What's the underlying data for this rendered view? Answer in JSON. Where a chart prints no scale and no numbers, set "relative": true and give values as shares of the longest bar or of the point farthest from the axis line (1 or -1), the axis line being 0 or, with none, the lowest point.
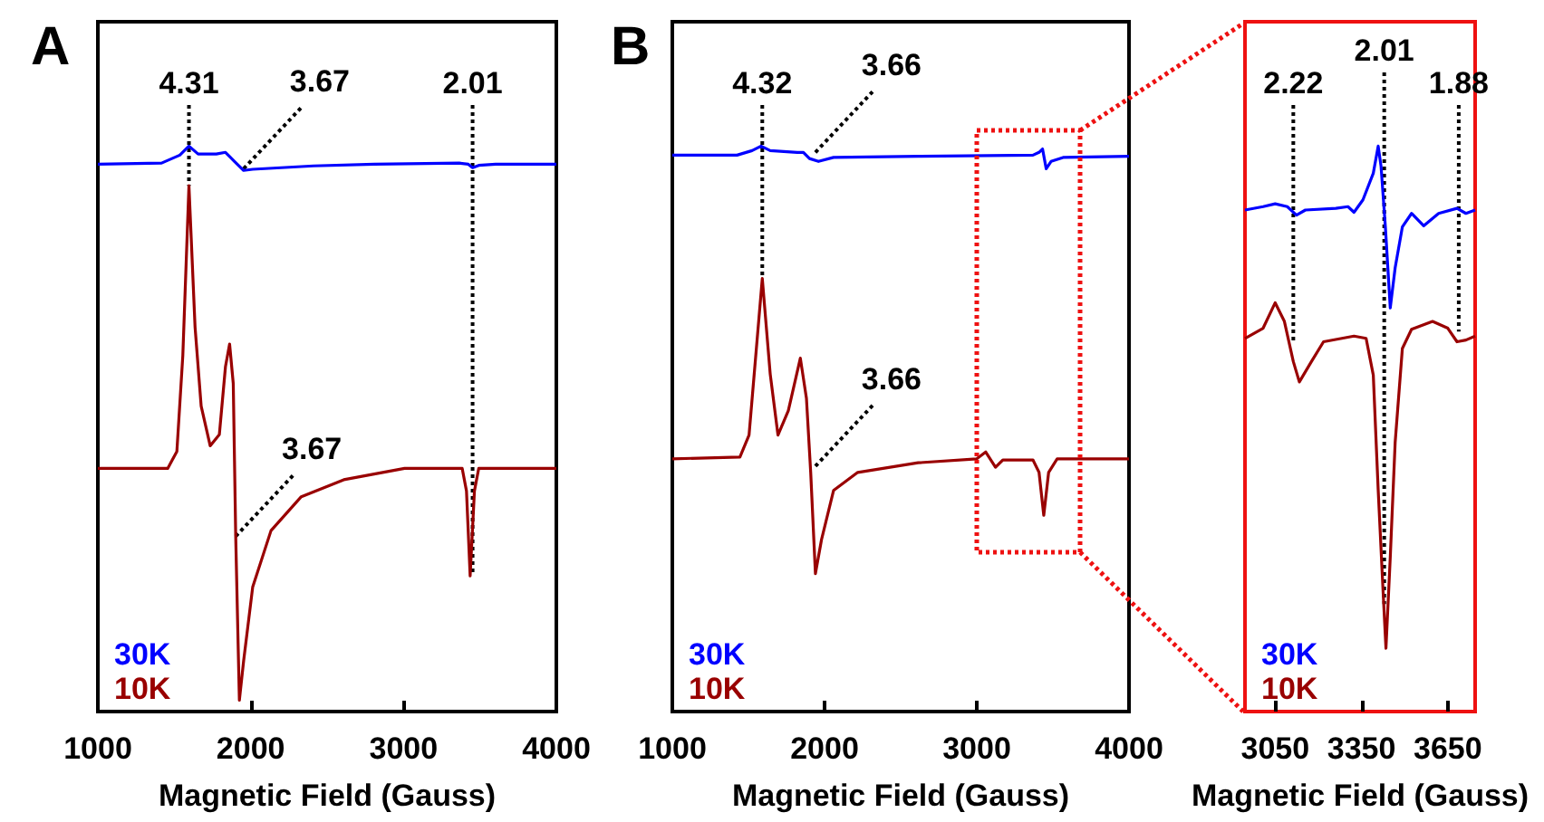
{
  "chart_data": [
    {
      "type": "line",
      "title": "A",
      "xlabel": "Magnetic Field (Gauss)",
      "xlim": [
        1000,
        4000
      ],
      "xticks": [
        1000,
        2000,
        3000,
        4000
      ],
      "relative": true,
      "tick_labels": "x",
      "legend": "bottom left",
      "series": [
        {
          "name": "30K",
          "color": "#0000ff",
          "x": [
            1000,
            1417,
            1536,
            1596,
            1656,
            1775,
            1835,
            1894,
            1954,
            2013,
            2411,
            2808,
            3365,
            3424,
            3452,
            3492,
            3603,
            4000
          ],
          "values": [
            0.968,
            0.97,
            0.984,
            1,
            0.986,
            0.986,
            0.989,
            0.973,
            0.957,
            0.959,
            0.965,
            0.968,
            0.97,
            0.968,
            0.962,
            0.966,
            0.968,
            0.968
          ]
        },
        {
          "name": "10K",
          "color": "#990000",
          "x": [
            1000,
            1457,
            1517,
            1556,
            1596,
            1636,
            1676,
            1735,
            1795,
            1835,
            1862,
            1886,
            1902,
            1926,
            1954,
            2013,
            2133,
            2331,
            2609,
            3007,
            3384,
            3412,
            3436,
            3464,
            3492,
            4000
          ],
          "values": [
            0.43,
            0.43,
            0.46,
            0.63,
            0.93,
            0.68,
            0.54,
            0.47,
            0.49,
            0.61,
            0.65,
            0.58,
            0.31,
            0.02,
            0.09,
            0.22,
            0.32,
            0.38,
            0.41,
            0.43,
            0.43,
            0.39,
            0.24,
            0.39,
            0.43,
            0.43
          ]
        }
      ],
      "annotations": [
        {
          "text": "4.31",
          "x": 1596,
          "y": 0.93
        },
        {
          "text": "3.67",
          "x": 1954,
          "y": 0.96
        },
        {
          "text": "2.01",
          "x": 3452,
          "y": 0.24
        },
        {
          "text": "3.67",
          "x": 1902,
          "y": 0.31
        }
      ]
    },
    {
      "type": "line",
      "title": "B",
      "xlabel": "Magnetic Field (Gauss)",
      "xlim": [
        1000,
        4000
      ],
      "xticks": [
        1000,
        2000,
        3000,
        4000
      ],
      "relative": true,
      "tick_labels": "x",
      "legend": "bottom left",
      "series": [
        {
          "name": "30K",
          "color": "#0000ff",
          "x": [
            1000,
            1425,
            1524,
            1583,
            1643,
            1821,
            1861,
            1901,
            1960,
            2059,
            2615,
            3369,
            3409,
            3432,
            3456,
            3488,
            3567,
            4000
          ],
          "values": [
            0.984,
            0.984,
            0.992,
            1,
            0.992,
            0.989,
            0.989,
            0.978,
            0.973,
            0.98,
            0.982,
            0.984,
            0.989,
            0.995,
            0.96,
            0.973,
            0.98,
            0.982
          ]
        },
        {
          "name": "10K",
          "color": "#990000",
          "x": [
            1000,
            1444,
            1504,
            1591,
            1643,
            1694,
            1762,
            1841,
            1881,
            1909,
            1940,
            1980,
            2059,
            2218,
            2615,
            3000,
            3059,
            3123,
            3171,
            3369,
            3409,
            3440,
            3472,
            3528,
            4000
          ],
          "values": [
            0.447,
            0.45,
            0.489,
            0.766,
            0.597,
            0.489,
            0.532,
            0.625,
            0.554,
            0.423,
            0.244,
            0.304,
            0.391,
            0.423,
            0.44,
            0.447,
            0.459,
            0.432,
            0.445,
            0.445,
            0.423,
            0.347,
            0.423,
            0.447,
            0.447
          ]
        }
      ],
      "annotations": [
        {
          "text": "4.32",
          "x": 1591,
          "y": 0.766
        },
        {
          "text": "3.66",
          "x": 1940,
          "y": 0.989
        },
        {
          "text": "3.66",
          "x": 1940,
          "y": 0.434
        }
      ]
    },
    {
      "type": "line",
      "xlabel": "Magnetic Field (Gauss)",
      "xlim": [
        2945,
        3745
      ],
      "xticks": [
        3050,
        3350,
        3650
      ],
      "relative": true,
      "tick_labels": "x",
      "legend": "bottom left",
      "series": [
        {
          "name": "30K",
          "color": "#0000ff",
          "x": [
            2945,
            3008,
            3050,
            3092,
            3124,
            3155,
            3261,
            3303,
            3324,
            3355,
            3391,
            3408,
            3418,
            3433,
            3450,
            3467,
            3492,
            3524,
            3566,
            3618,
            3682,
            3713,
            3745
          ],
          "values": [
            0.887,
            0.893,
            0.898,
            0.893,
            0.878,
            0.887,
            0.89,
            0.893,
            0.883,
            0.905,
            0.952,
            1,
            0.964,
            0.857,
            0.714,
            0.785,
            0.857,
            0.881,
            0.859,
            0.881,
            0.89,
            0.881,
            0.887
          ]
        },
        {
          "name": "10K",
          "color": "#990000",
          "x": [
            2945,
            3008,
            3050,
            3082,
            3113,
            3134,
            3176,
            3218,
            3324,
            3366,
            3391,
            3408,
            3425,
            3435,
            3450,
            3467,
            3492,
            3524,
            3597,
            3650,
            3682,
            3713,
            3745
          ],
          "values": [
            0.66,
            0.678,
            0.723,
            0.69,
            0.619,
            0.583,
            0.619,
            0.654,
            0.664,
            0.66,
            0.595,
            0.392,
            0.213,
            0.112,
            0.273,
            0.476,
            0.642,
            0.676,
            0.69,
            0.678,
            0.654,
            0.657,
            0.664
          ]
        }
      ],
      "annotations": [
        {
          "text": "2.22",
          "x": 3113,
          "y": 0.654
        },
        {
          "text": "2.01",
          "x": 3429,
          "y": 0.19
        },
        {
          "text": "1.88",
          "x": 3688,
          "y": 0.672
        }
      ]
    }
  ]
}
